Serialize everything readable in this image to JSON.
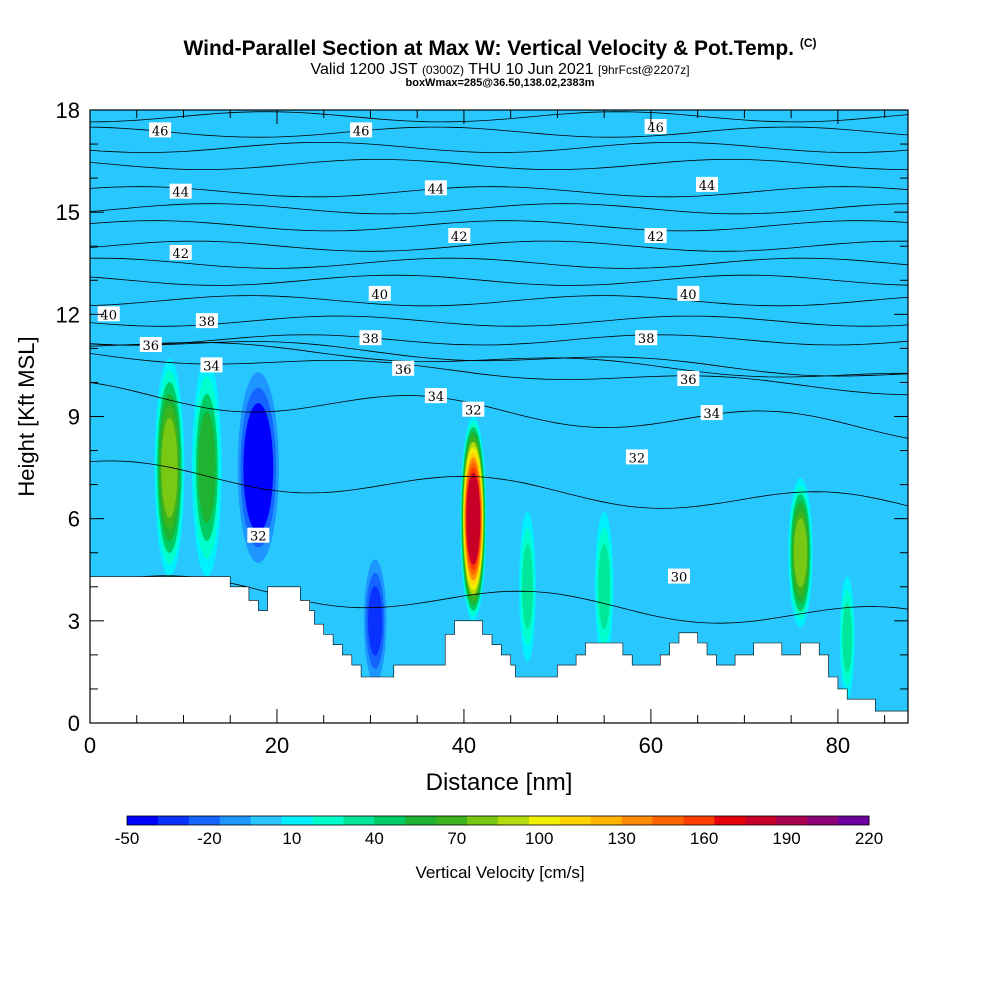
{
  "header": {
    "title": "Wind-Parallel Section at Max W: Vertical Velocity & Pot.Temp.",
    "title_mark": "(C)",
    "subtitle_main": "Valid 1200 JST",
    "subtitle_utc": "(0300Z)",
    "subtitle_date": "THU 10 Jun 2021",
    "subtitle_fcst": "[9hrFcst@2207z]",
    "subtitle2": "boxWmax=285@36.50,138.02,2383m"
  },
  "chart_data": {
    "type": "heatmap",
    "xlabel": "Distance [nm]",
    "ylabel": "Height [Kft MSL]",
    "xlim": [
      0,
      87.5
    ],
    "ylim": [
      0,
      18
    ],
    "x_ticks": [
      0,
      20,
      40,
      60,
      80
    ],
    "y_ticks": [
      0,
      3,
      6,
      9,
      12,
      15,
      18
    ],
    "colorbar": {
      "label": "Vertical Velocity [cm/s]",
      "tick_labels": [
        -50,
        -20,
        10,
        40,
        70,
        100,
        130,
        160,
        190,
        220
      ],
      "colors": [
        "#0000ff",
        "#0a32ff",
        "#1464ff",
        "#1e96ff",
        "#28c8ff",
        "#00f0ff",
        "#00ffcc",
        "#00e69a",
        "#00cc66",
        "#1eb432",
        "#3cb41e",
        "#78c814",
        "#b4dc0a",
        "#f0f000",
        "#ffd200",
        "#ffb400",
        "#ff8c00",
        "#ff6400",
        "#ff3c00",
        "#e6000a",
        "#c80028",
        "#aa0050",
        "#8c0078",
        "#6e00a0"
      ]
    },
    "theta_contours": {
      "units": "C",
      "levels": [
        30,
        32,
        34,
        36,
        38,
        40,
        42,
        44,
        46
      ],
      "labels": [
        {
          "value": "46",
          "x": 7.5,
          "y": 17.4
        },
        {
          "value": "46",
          "x": 29.0,
          "y": 17.4
        },
        {
          "value": "46",
          "x": 60.5,
          "y": 17.5
        },
        {
          "value": "44",
          "x": 9.7,
          "y": 15.6
        },
        {
          "value": "44",
          "x": 37.0,
          "y": 15.7
        },
        {
          "value": "44",
          "x": 66.0,
          "y": 15.8
        },
        {
          "value": "42",
          "x": 9.7,
          "y": 13.8
        },
        {
          "value": "42",
          "x": 39.5,
          "y": 14.3
        },
        {
          "value": "42",
          "x": 60.5,
          "y": 14.3
        },
        {
          "value": "40",
          "x": 2.0,
          "y": 12.0
        },
        {
          "value": "40",
          "x": 31.0,
          "y": 12.6
        },
        {
          "value": "40",
          "x": 64.0,
          "y": 12.6
        },
        {
          "value": "38",
          "x": 12.5,
          "y": 11.8
        },
        {
          "value": "38",
          "x": 30.0,
          "y": 11.3
        },
        {
          "value": "38",
          "x": 59.5,
          "y": 11.3
        },
        {
          "value": "36",
          "x": 6.5,
          "y": 11.1
        },
        {
          "value": "36",
          "x": 33.5,
          "y": 10.4
        },
        {
          "value": "36",
          "x": 64.0,
          "y": 10.1
        },
        {
          "value": "34",
          "x": 13.0,
          "y": 10.5
        },
        {
          "value": "34",
          "x": 37.0,
          "y": 9.6
        },
        {
          "value": "34",
          "x": 66.5,
          "y": 9.1
        },
        {
          "value": "32",
          "x": 41.0,
          "y": 9.2
        },
        {
          "value": "32",
          "x": 58.5,
          "y": 7.8
        },
        {
          "value": "32",
          "x": 18.0,
          "y": 5.5
        },
        {
          "value": "30",
          "x": 63.0,
          "y": 4.3
        }
      ]
    },
    "vertical_velocity_cells": [
      {
        "x": 8.5,
        "z": 7.5,
        "peak": 75,
        "width": 1.6,
        "depth": 3.2
      },
      {
        "x": 12.5,
        "z": 7.5,
        "peak": 55,
        "width": 1.6,
        "depth": 3.2
      },
      {
        "x": 18.0,
        "z": 7.5,
        "peak": -45,
        "width": 2.2,
        "depth": 2.8
      },
      {
        "x": 30.5,
        "z": 3.0,
        "peak": -30,
        "width": 1.2,
        "depth": 1.8
      },
      {
        "x": 41.0,
        "z": 6.0,
        "peak": 180,
        "width": 1.4,
        "depth": 3.0
      },
      {
        "x": 46.8,
        "z": 4.0,
        "peak": 35,
        "width": 0.9,
        "depth": 2.2
      },
      {
        "x": 55.0,
        "z": 4.0,
        "peak": 30,
        "width": 1.0,
        "depth": 2.2
      },
      {
        "x": 76.0,
        "z": 5.0,
        "peak": 75,
        "width": 1.3,
        "depth": 2.2
      },
      {
        "x": 81.0,
        "z": 2.5,
        "peak": 35,
        "width": 0.8,
        "depth": 1.8
      }
    ],
    "terrain": [
      [
        0,
        4.3
      ],
      [
        15,
        4.3
      ],
      [
        15,
        4.0
      ],
      [
        17,
        4.0
      ],
      [
        17,
        3.6
      ],
      [
        18,
        3.6
      ],
      [
        18,
        3.3
      ],
      [
        19,
        3.3
      ],
      [
        19,
        4.0
      ],
      [
        22.5,
        4.0
      ],
      [
        22.5,
        3.6
      ],
      [
        23.5,
        3.6
      ],
      [
        23.5,
        3.3
      ],
      [
        24,
        3.3
      ],
      [
        24,
        2.9
      ],
      [
        25,
        2.9
      ],
      [
        25,
        2.6
      ],
      [
        26,
        2.6
      ],
      [
        26,
        2.3
      ],
      [
        27,
        2.3
      ],
      [
        27,
        2.0
      ],
      [
        28,
        2.0
      ],
      [
        28,
        1.7
      ],
      [
        29,
        1.7
      ],
      [
        29,
        1.35
      ],
      [
        32.5,
        1.35
      ],
      [
        32.5,
        1.7
      ],
      [
        38,
        1.7
      ],
      [
        38,
        2.6
      ],
      [
        39,
        2.6
      ],
      [
        39,
        3.0
      ],
      [
        42,
        3.0
      ],
      [
        42,
        2.6
      ],
      [
        43,
        2.6
      ],
      [
        43,
        2.3
      ],
      [
        44,
        2.3
      ],
      [
        44,
        2.0
      ],
      [
        45,
        2.0
      ],
      [
        45,
        1.7
      ],
      [
        45.5,
        1.7
      ],
      [
        45.5,
        1.35
      ],
      [
        50,
        1.35
      ],
      [
        50,
        1.7
      ],
      [
        52,
        1.7
      ],
      [
        52,
        2.0
      ],
      [
        53,
        2.0
      ],
      [
        53,
        2.35
      ],
      [
        57,
        2.35
      ],
      [
        57,
        2.0
      ],
      [
        58,
        2.0
      ],
      [
        58,
        1.7
      ],
      [
        61,
        1.7
      ],
      [
        61,
        2.0
      ],
      [
        62,
        2.0
      ],
      [
        62,
        2.35
      ],
      [
        63,
        2.35
      ],
      [
        63,
        2.65
      ],
      [
        65,
        2.65
      ],
      [
        65,
        2.35
      ],
      [
        66,
        2.35
      ],
      [
        66,
        2.0
      ],
      [
        67,
        2.0
      ],
      [
        67,
        1.7
      ],
      [
        69,
        1.7
      ],
      [
        69,
        2.0
      ],
      [
        71,
        2.0
      ],
      [
        71,
        2.35
      ],
      [
        74,
        2.35
      ],
      [
        74,
        2.0
      ],
      [
        76,
        2.0
      ],
      [
        76,
        2.35
      ],
      [
        78,
        2.35
      ],
      [
        78,
        2.0
      ],
      [
        79,
        2.0
      ],
      [
        79,
        1.35
      ],
      [
        80,
        1.35
      ],
      [
        80,
        1.0
      ],
      [
        81,
        1.0
      ],
      [
        81,
        0.7
      ],
      [
        84,
        0.7
      ],
      [
        84,
        0.35
      ],
      [
        87.5,
        0.35
      ],
      [
        87.5,
        0
      ]
    ]
  }
}
